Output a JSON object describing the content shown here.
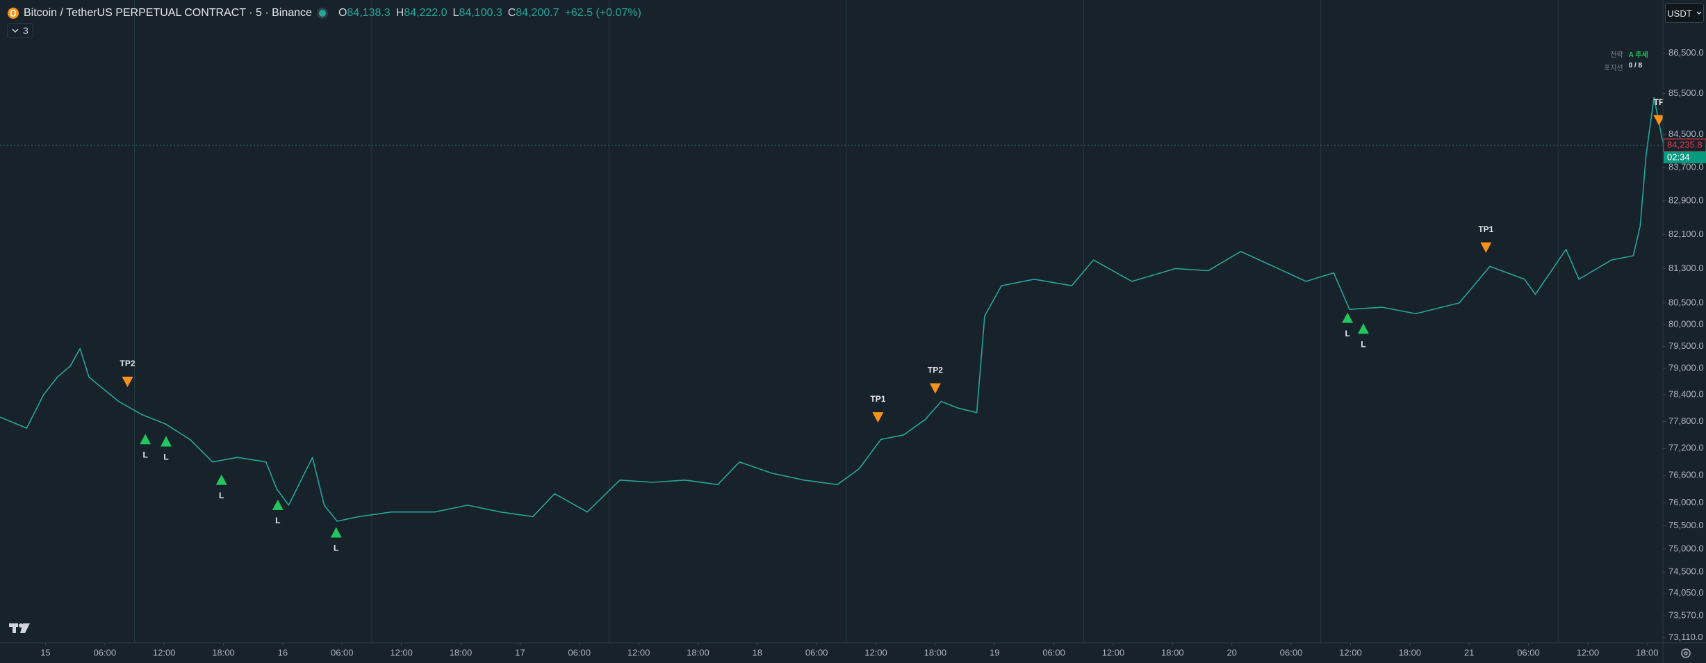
{
  "header": {
    "symbol": "Bitcoin / TetherUS PERPETUAL CONTRACT · 5 · Binance",
    "ohlc": [
      {
        "key": "O",
        "value": "84,138.3"
      },
      {
        "key": "H",
        "value": "84,222.0"
      },
      {
        "key": "L",
        "value": "84,100.3"
      },
      {
        "key": "C",
        "value": "84,200.7"
      }
    ],
    "change": "+62.5 (+0.07%)",
    "indicators": "3",
    "currency": "USDT"
  },
  "info_box": {
    "rows": [
      [
        "전략",
        "A 추세"
      ],
      [
        "포지션",
        "0 / 8"
      ]
    ]
  },
  "chart_data": {
    "type": "line",
    "log_scale": true,
    "color": "#26a69a",
    "x": [
      -4.6,
      -1.9,
      -0.2,
      1.2,
      2.5,
      3.5,
      4.4,
      7.4,
      9.8,
      12.1,
      14.6,
      16.9,
      19.4,
      22.3,
      23.4,
      24.6,
      27,
      28.2,
      29.5,
      31.7,
      35,
      39.4,
      42.7,
      46,
      49.3,
      51.5,
      54.8,
      58.1,
      61.4,
      64.7,
      68,
      70.2,
      73.5,
      76.7,
      80.1,
      82.3,
      84.5,
      86.8,
      89,
      90.6,
      92.3,
      94.2,
      95,
      96.7,
      100,
      103.8,
      106,
      109.9,
      114.3,
      117.6,
      120.9,
      124.2,
      127.5,
      130.3,
      131.9,
      135.2,
      138.6,
      143,
      146.1,
      149.6,
      150.7,
      153.8,
      155.1,
      158.4,
      160.6,
      161.3,
      161.9,
      162.7,
      163.6
    ],
    "values": [
      77900,
      77650,
      78400,
      78800,
      79050,
      79450,
      78800,
      78250,
      77950,
      77750,
      77400,
      76900,
      77000,
      76900,
      76300,
      75950,
      77000,
      75950,
      75600,
      75700,
      75800,
      75800,
      75950,
      75800,
      75700,
      76200,
      75800,
      76500,
      76450,
      76500,
      76400,
      76900,
      76650,
      76500,
      76400,
      76750,
      77400,
      77500,
      77850,
      78250,
      78100,
      78000,
      80200,
      80900,
      81050,
      80900,
      81500,
      81000,
      81300,
      81250,
      81700,
      81350,
      81000,
      81200,
      80350,
      80400,
      80250,
      80500,
      81350,
      81050,
      80700,
      81750,
      81050,
      81500,
      81600,
      82300,
      84000,
      85400,
      84300
    ],
    "xlim": [
      -4.6,
      163.6
    ],
    "ylim": [
      73000,
      87830
    ],
    "xticks": [
      {
        "value": 0,
        "label": "15"
      },
      {
        "value": 6,
        "label": "06:00"
      },
      {
        "value": 12,
        "label": "12:00"
      },
      {
        "value": 18,
        "label": "18:00"
      },
      {
        "value": 24,
        "label": "16"
      },
      {
        "value": 30,
        "label": "06:00"
      },
      {
        "value": 36,
        "label": "12:00"
      },
      {
        "value": 42,
        "label": "18:00"
      },
      {
        "value": 48,
        "label": "17"
      },
      {
        "value": 54,
        "label": "06:00"
      },
      {
        "value": 60,
        "label": "12:00"
      },
      {
        "value": 66,
        "label": "18:00"
      },
      {
        "value": 72,
        "label": "18"
      },
      {
        "value": 78,
        "label": "06:00"
      },
      {
        "value": 84,
        "label": "12:00"
      },
      {
        "value": 90,
        "label": "18:00"
      },
      {
        "value": 96,
        "label": "19"
      },
      {
        "value": 102,
        "label": "06:00"
      },
      {
        "value": 108,
        "label": "12:00"
      },
      {
        "value": 114,
        "label": "18:00"
      },
      {
        "value": 120,
        "label": "20"
      },
      {
        "value": 126,
        "label": "06:00"
      },
      {
        "value": 132,
        "label": "12:00"
      },
      {
        "value": 138,
        "label": "18:00"
      },
      {
        "value": 144,
        "label": "21"
      },
      {
        "value": 150,
        "label": "06:00"
      },
      {
        "value": 156,
        "label": "12:00"
      },
      {
        "value": 162,
        "label": "18:00"
      }
    ],
    "yticks": [
      {
        "value": 86500,
        "label": "86,500.0"
      },
      {
        "value": 85500,
        "label": "85,500.0"
      },
      {
        "value": 84500,
        "label": "84,500.0"
      },
      {
        "value": 83700,
        "label": "83,700.0"
      },
      {
        "value": 82900,
        "label": "82,900.0"
      },
      {
        "value": 82100,
        "label": "82,100.0"
      },
      {
        "value": 81300,
        "label": "81,300.0"
      },
      {
        "value": 80500,
        "label": "80,500.0"
      },
      {
        "value": 80000,
        "label": "80,000.0"
      },
      {
        "value": 79500,
        "label": "79,500.0"
      },
      {
        "value": 79000,
        "label": "79,000.0"
      },
      {
        "value": 78400,
        "label": "78,400.0"
      },
      {
        "value": 77800,
        "label": "77,800.0"
      },
      {
        "value": 77200,
        "label": "77,200.0"
      },
      {
        "value": 76600,
        "label": "76,600.0"
      },
      {
        "value": 76000,
        "label": "76,000.0"
      },
      {
        "value": 75500,
        "label": "75,500.0"
      },
      {
        "value": 75000,
        "label": "75,000.0"
      },
      {
        "value": 74500,
        "label": "74,500.0"
      },
      {
        "value": 74050,
        "label": "74,050.0"
      },
      {
        "value": 73570,
        "label": "73,570.0"
      },
      {
        "value": 73110,
        "label": "73,110.0"
      }
    ],
    "session_lines": [
      9,
      33,
      57,
      81,
      105,
      129,
      153
    ],
    "last_price": {
      "value": 84235.8,
      "label": "84,235.8"
    },
    "countdown": "02:34",
    "signals": [
      {
        "label": "TP2",
        "x": 8.3,
        "price": 78700,
        "side": "down"
      },
      {
        "label": "L",
        "x": 10.1,
        "price": 77400,
        "side": "up"
      },
      {
        "label": "L",
        "x": 12.2,
        "price": 77350,
        "side": "up"
      },
      {
        "label": "L",
        "x": 17.8,
        "price": 76500,
        "side": "up"
      },
      {
        "label": "L",
        "x": 23.5,
        "price": 75950,
        "side": "up"
      },
      {
        "label": "L",
        "x": 29.4,
        "price": 75350,
        "side": "up"
      },
      {
        "label": "TP1",
        "x": 84.2,
        "price": 77900,
        "side": "down"
      },
      {
        "label": "TP2",
        "x": 90,
        "price": 78550,
        "side": "down"
      },
      {
        "label": "L",
        "x": 131.7,
        "price": 80150,
        "side": "up"
      },
      {
        "label": "L",
        "x": 133.3,
        "price": 79900,
        "side": "up"
      },
      {
        "label": "TP1",
        "x": 145.7,
        "price": 81800,
        "side": "down"
      },
      {
        "label": "TP",
        "x": 163.2,
        "price": 84850,
        "side": "down"
      }
    ]
  }
}
